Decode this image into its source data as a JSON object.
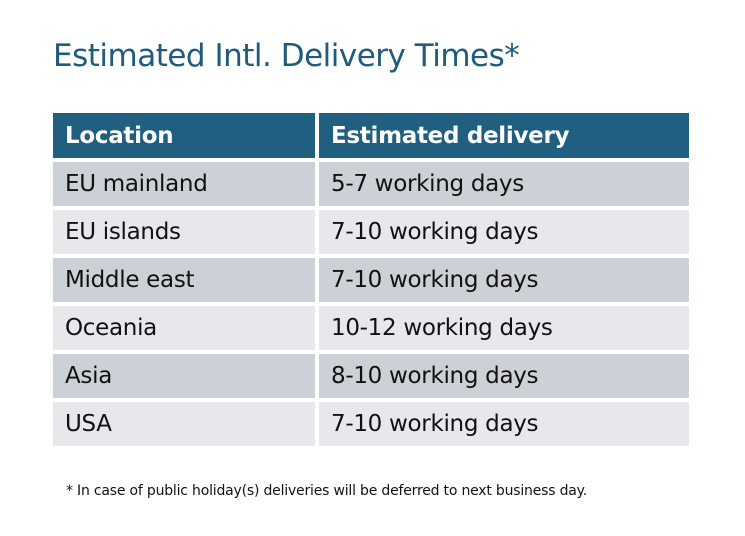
{
  "title": "Estimated Intl. Delivery Times*",
  "table": {
    "headers": [
      "Location",
      "Estimated delivery"
    ],
    "rows": [
      [
        "EU mainland",
        "5-7 working days"
      ],
      [
        "EU islands",
        "7-10 working days"
      ],
      [
        "Middle east",
        "7-10 working days"
      ],
      [
        "Oceania",
        "10-12 working days"
      ],
      [
        "Asia",
        "8-10 working days"
      ],
      [
        "USA",
        "7-10 working days"
      ]
    ]
  },
  "footnote": "* In case of public holiday(s) deliveries will be deferred to next business day.",
  "colors": {
    "header": "#215f80",
    "title": "#1f5b7c",
    "row_odd": "#ccd1d8",
    "row_even": "#e6e8eb"
  }
}
